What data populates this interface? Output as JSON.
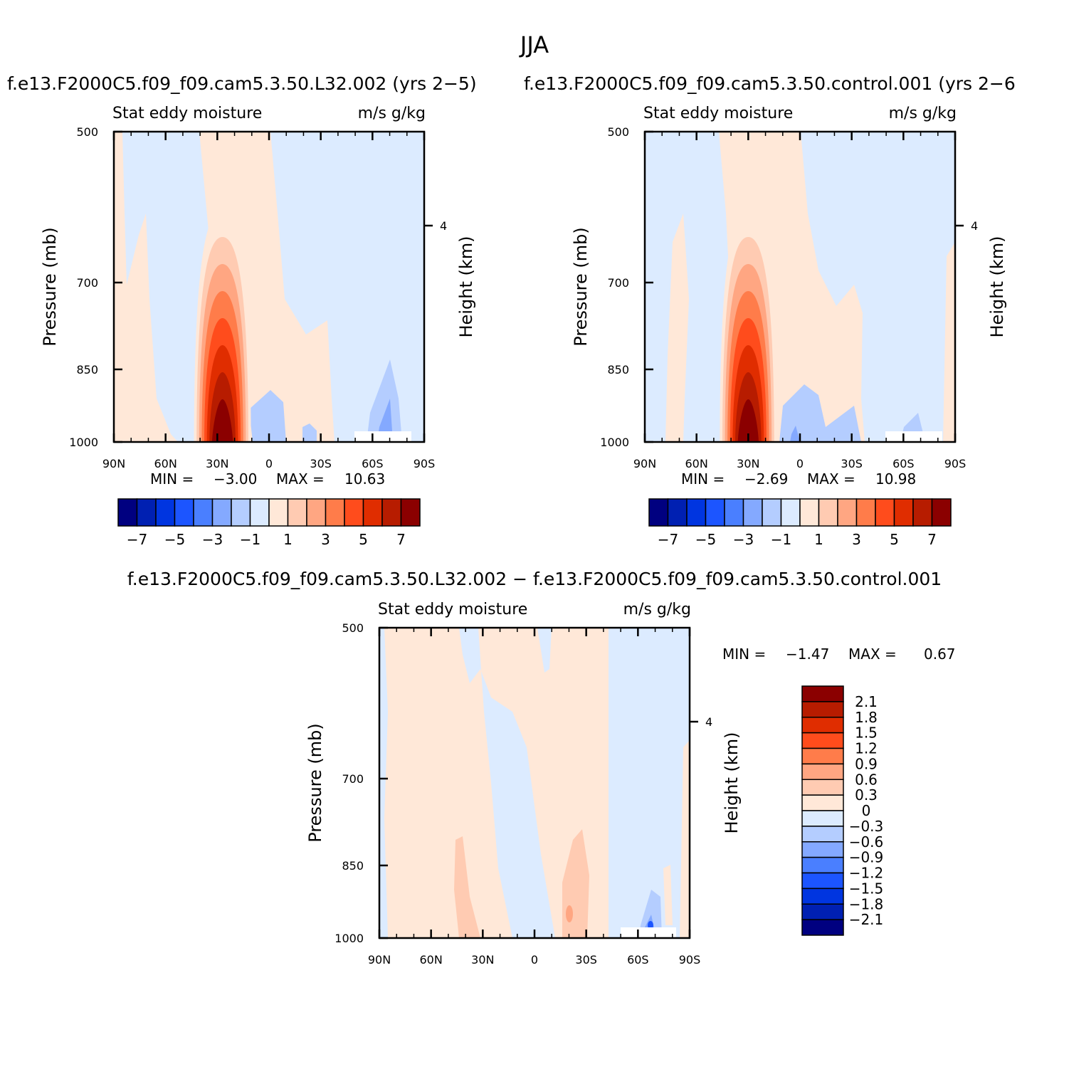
{
  "figure_title": "JJA",
  "palette": {
    "diverging_16": [
      "#000080",
      "#0020b2",
      "#0035e0",
      "#1c55ff",
      "#4a7fff",
      "#84a9ff",
      "#b4cdff",
      "#dcebff",
      "#ffe8d8",
      "#ffcbb2",
      "#ffa682",
      "#ff7c4a",
      "#ff4c1c",
      "#e02d00",
      "#b71c00",
      "#8b0000"
    ],
    "diff_15": [
      "#000080",
      "#0020b2",
      "#0035e0",
      "#1c55ff",
      "#4a7fff",
      "#84a9ff",
      "#b4cdff",
      "#dcebff",
      "#ffe8d8",
      "#ffcbb2",
      "#ffa682",
      "#ff7c4a",
      "#ff4c1c",
      "#e02d00",
      "#b71c00",
      "#8b0000"
    ]
  },
  "chart_data": [
    {
      "type": "heatmap",
      "title": "f.e13.F2000C5.f09_f09.cam5.3.50.L32.002 (yrs 2-5)",
      "title_display": "f.e13.F2000C5.f09_f09.cam5.3.50.L32.002  (yrs  2−5)",
      "left_string": "Stat  eddy  moisture",
      "right_string": "m/s  g/kg",
      "ylabel": "Pressure  (mb)",
      "ylabel_right": "Height  (km)",
      "x_ticks": [
        "90N",
        "60N",
        "30N",
        "0",
        "30S",
        "60S",
        "90S"
      ],
      "y_ticks": [
        "500",
        "700",
        "850",
        "1000"
      ],
      "y_right_ticks": [
        "4"
      ],
      "xlim": [
        90,
        -90
      ],
      "ylim": [
        1000,
        500
      ],
      "min_label": "MIN  =",
      "min_value": "−3.00",
      "max_label": "MAX  =",
      "max_value": "10.63",
      "colorbar_labels": [
        "−7",
        "−5",
        "−3",
        "−1",
        "1",
        "3",
        "5",
        "7"
      ],
      "colorbar_orientation": "horizontal",
      "peak": {
        "lat": 27,
        "pressure": 940,
        "value": 10.63
      }
    },
    {
      "type": "heatmap",
      "title": "f.e13.F2000C5.f09_f09.cam5.3.50.control.001 (yrs 2-6",
      "title_display": "f.e13.F2000C5.f09_f09.cam5.3.50.control.001  (yrs  2−6",
      "left_string": "Stat  eddy  moisture",
      "right_string": "m/s  g/kg",
      "ylabel": "Pressure  (mb)",
      "ylabel_right": "Height  (km)",
      "x_ticks": [
        "90N",
        "60N",
        "30N",
        "0",
        "30S",
        "60S",
        "90S"
      ],
      "y_ticks": [
        "500",
        "700",
        "850",
        "1000"
      ],
      "y_right_ticks": [
        "4"
      ],
      "xlim": [
        90,
        -90
      ],
      "ylim": [
        1000,
        500
      ],
      "min_label": "MIN  =",
      "min_value": "−2.69",
      "max_label": "MAX  =",
      "max_value": "10.98",
      "colorbar_labels": [
        "−7",
        "−5",
        "−3",
        "−1",
        "1",
        "3",
        "5",
        "7"
      ],
      "colorbar_orientation": "horizontal",
      "peak": {
        "lat": 30,
        "pressure": 940,
        "value": 10.98
      }
    },
    {
      "type": "heatmap",
      "title": "f.e13.F2000C5.f09_f09.cam5.3.50.L32.002 - f.e13.F2000C5.f09_f09.cam5.3.50.control.001",
      "title_display": "f.e13.F2000C5.f09_f09.cam5.3.50.L32.002  −  f.e13.F2000C5.f09_f09.cam5.3.50.control.001",
      "left_string": "Stat  eddy  moisture",
      "right_string": "m/s  g/kg",
      "ylabel": "Pressure  (mb)",
      "ylabel_right": "Height  (km)",
      "x_ticks": [
        "90N",
        "60N",
        "30N",
        "0",
        "30S",
        "60S",
        "90S"
      ],
      "y_ticks": [
        "500",
        "700",
        "850",
        "1000"
      ],
      "y_right_ticks": [
        "4"
      ],
      "xlim": [
        90,
        -90
      ],
      "ylim": [
        1000,
        500
      ],
      "min_label": "MIN  =",
      "min_value": "−1.47",
      "max_label": "MAX  =",
      "max_value": "0.67",
      "colorbar_labels": [
        "2.1",
        "1.8",
        "1.5",
        "1.2",
        "0.9",
        "0.6",
        "0.3",
        "0",
        "−0.3",
        "−0.6",
        "−0.9",
        "−1.2",
        "−1.5",
        "−1.8",
        "−2.1"
      ],
      "colorbar_orientation": "vertical"
    }
  ]
}
